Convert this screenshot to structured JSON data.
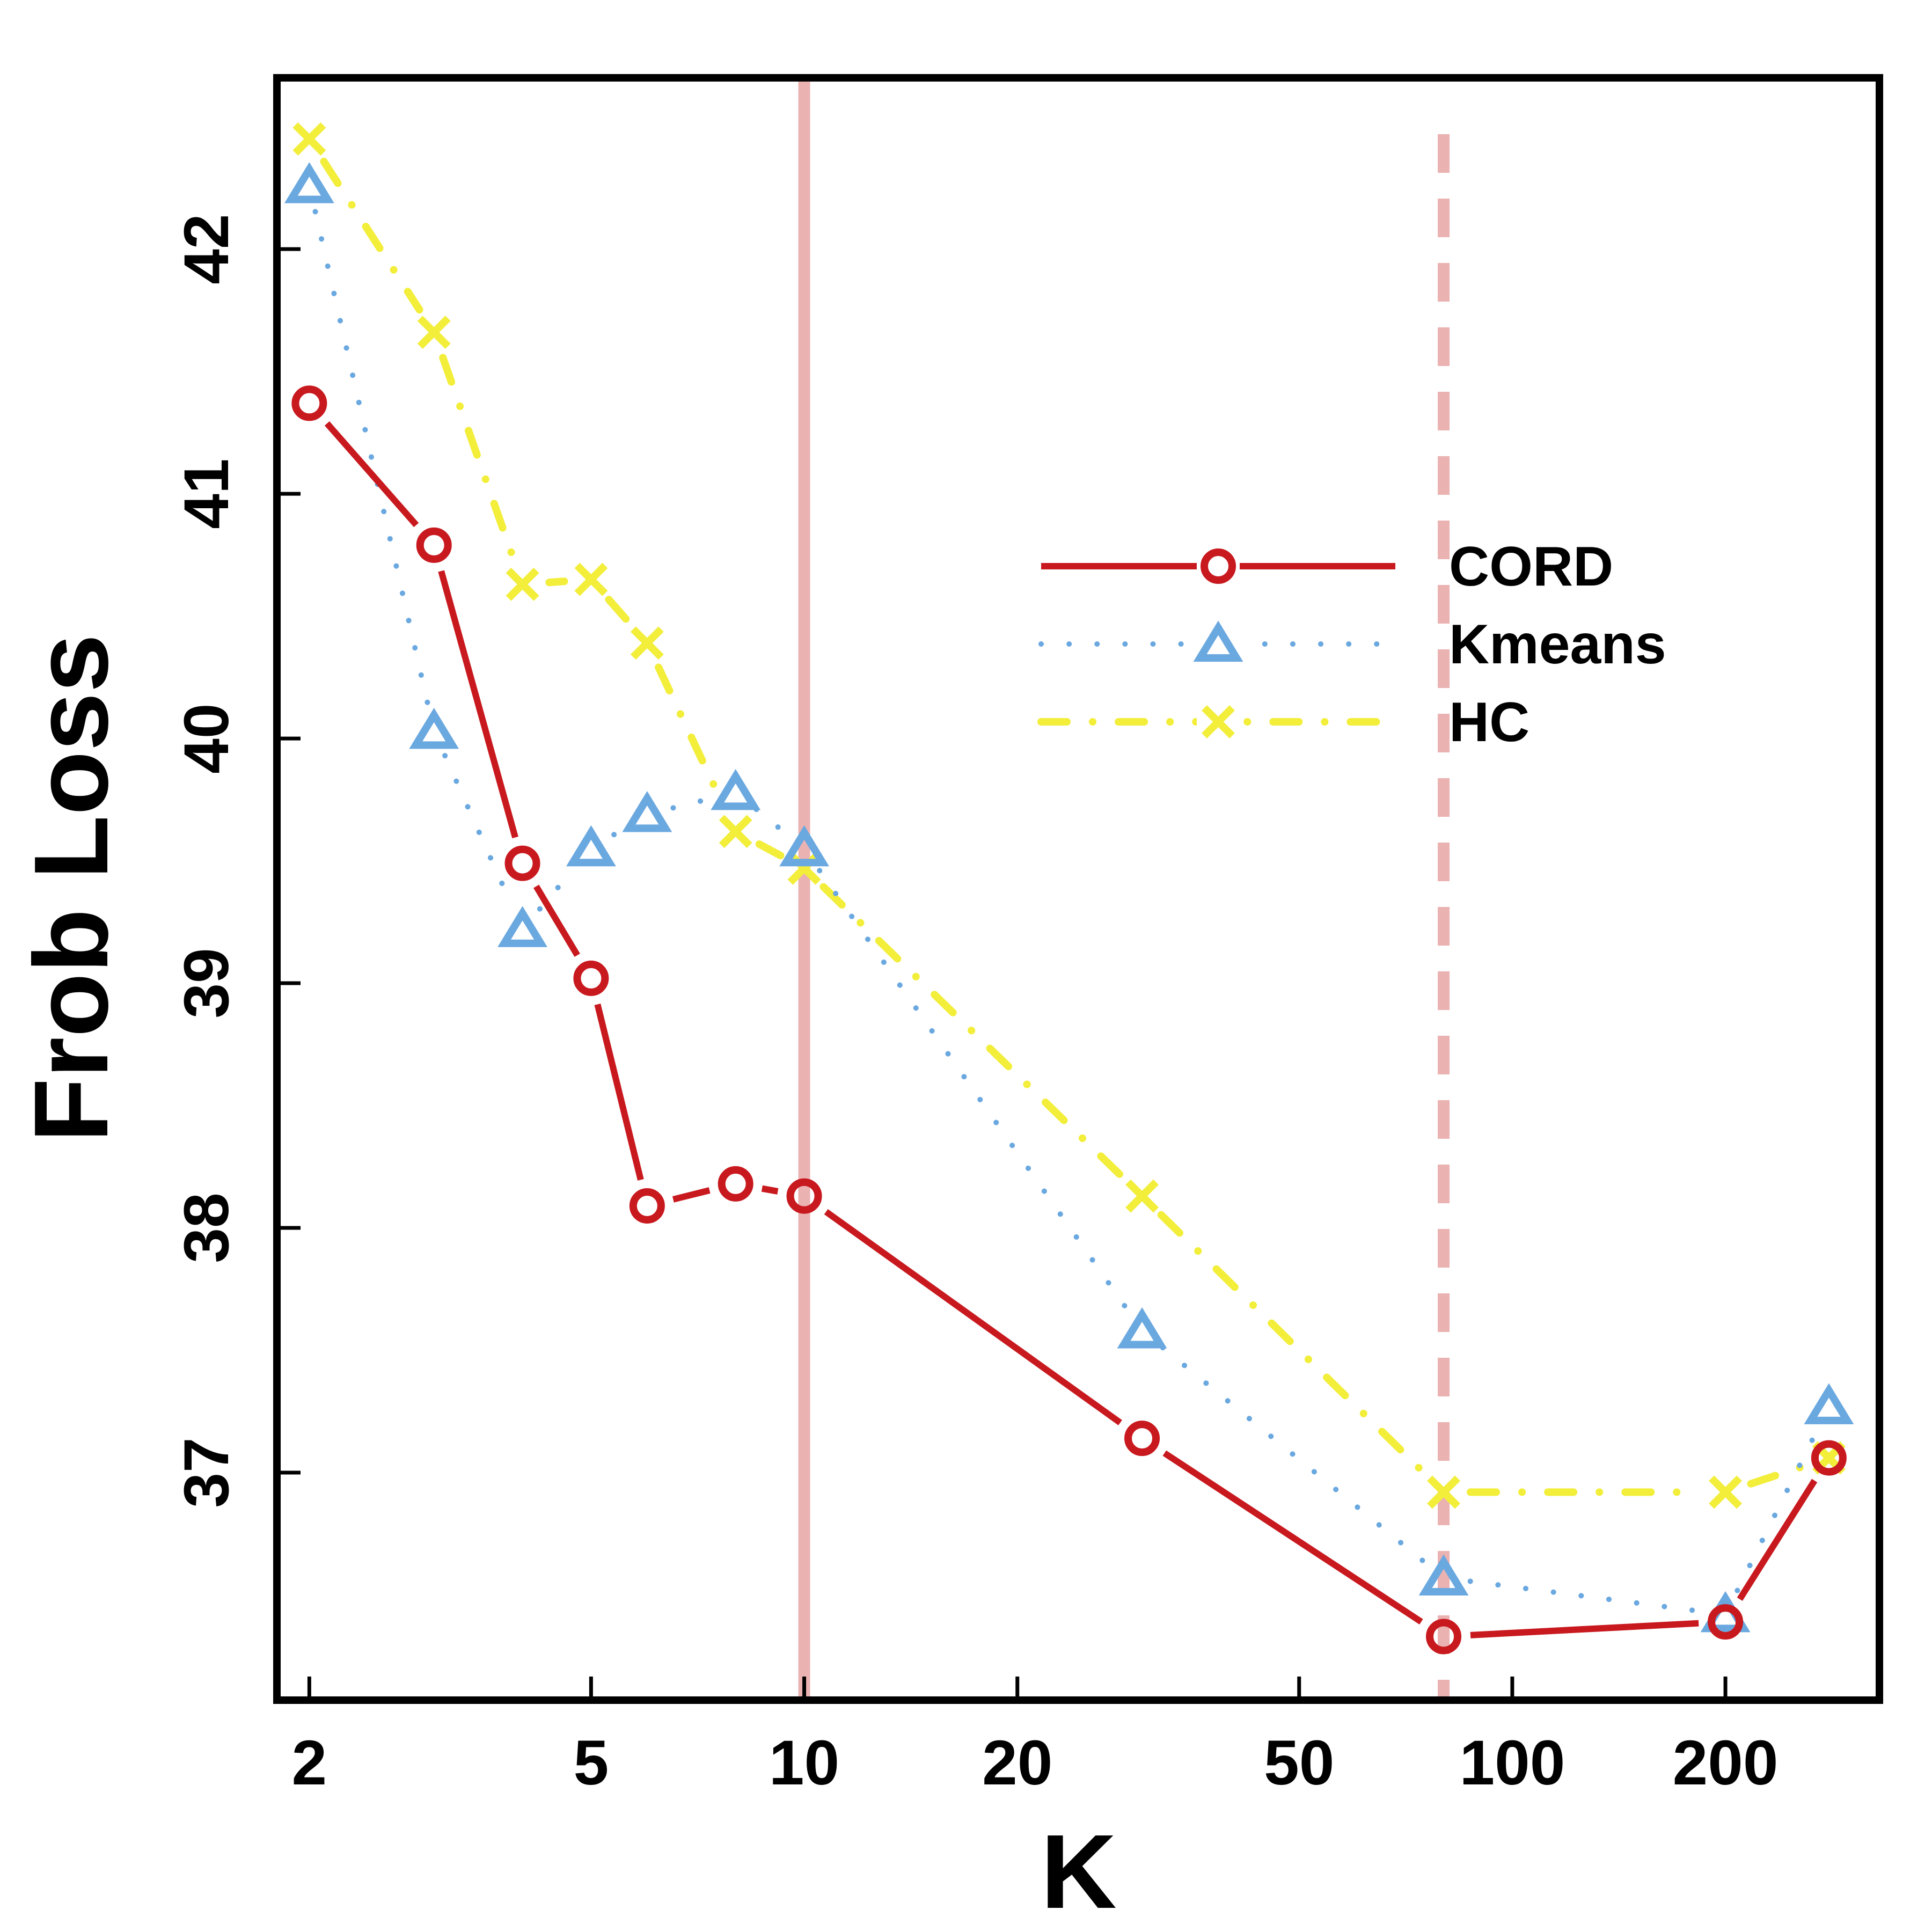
{
  "chart_data": {
    "type": "line",
    "xlabel": "K",
    "ylabel": "Frob Loss",
    "xscale": "log",
    "xlim": [
      1.8,
      330
    ],
    "ylim": [
      36.07,
      42.7
    ],
    "xticks": [
      2,
      5,
      10,
      20,
      50,
      100,
      200
    ],
    "xtick_labels": [
      "2",
      "5",
      "10",
      "20",
      "50",
      "100",
      "200"
    ],
    "yticks": [
      37,
      38,
      39,
      40,
      41,
      42
    ],
    "ytick_labels": [
      "37",
      "38",
      "39",
      "40",
      "41",
      "42"
    ],
    "grid": false,
    "legend_position": "upper-right",
    "vlines": [
      {
        "x": 10,
        "style": "solid",
        "color": "#ebb2b2"
      },
      {
        "x": 80,
        "style": "dashed",
        "color": "#ebb2b2"
      }
    ],
    "series": [
      {
        "name": "CORD",
        "color": "#c8191f",
        "line_style": "solid",
        "marker": "circle",
        "x": [
          2,
          3,
          4,
          5,
          6,
          8,
          10,
          30,
          80,
          200,
          280
        ],
        "y": [
          41.37,
          40.79,
          39.49,
          39.02,
          38.09,
          38.18,
          38.13,
          37.14,
          36.33,
          36.39,
          37.06
        ]
      },
      {
        "name": "Kmeans",
        "color": "#6aa8e0",
        "line_style": "dotted",
        "marker": "triangle",
        "x": [
          2,
          3,
          4,
          5,
          6,
          8,
          10,
          30,
          80,
          200,
          280
        ],
        "y": [
          42.26,
          40.03,
          39.22,
          39.55,
          39.69,
          39.78,
          39.55,
          37.58,
          36.57,
          36.42,
          37.27
        ]
      },
      {
        "name": "HC",
        "color": "#f2ee3a",
        "line_style": "dashdot",
        "marker": "x",
        "x": [
          2,
          3,
          4,
          5,
          6,
          8,
          10,
          30,
          80,
          200,
          280
        ],
        "y": [
          42.45,
          41.66,
          40.63,
          40.65,
          40.39,
          39.62,
          39.47,
          38.13,
          36.92,
          36.92,
          37.06
        ]
      }
    ]
  }
}
